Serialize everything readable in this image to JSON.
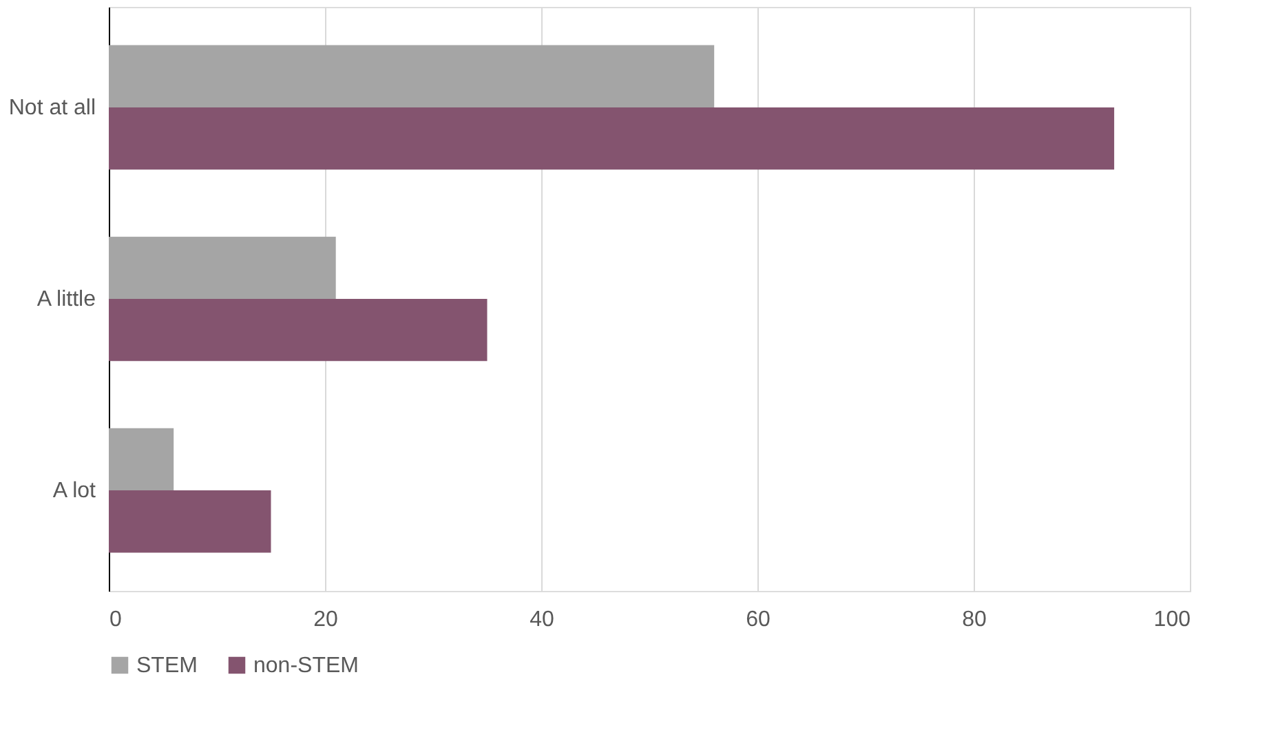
{
  "chart_data": {
    "type": "bar",
    "orientation": "horizontal",
    "categories": [
      "Not at all",
      "A little",
      "A lot"
    ],
    "series": [
      {
        "name": "STEM",
        "color": "#a5a5a5",
        "values": [
          56,
          21,
          6
        ]
      },
      {
        "name": "non-STEM",
        "color": "#84546f",
        "values": [
          93,
          35,
          15
        ]
      }
    ],
    "xlim": [
      0,
      100
    ],
    "xticks": [
      0,
      20,
      40,
      60,
      80,
      100
    ],
    "grid": "x",
    "legend": "bottom"
  }
}
